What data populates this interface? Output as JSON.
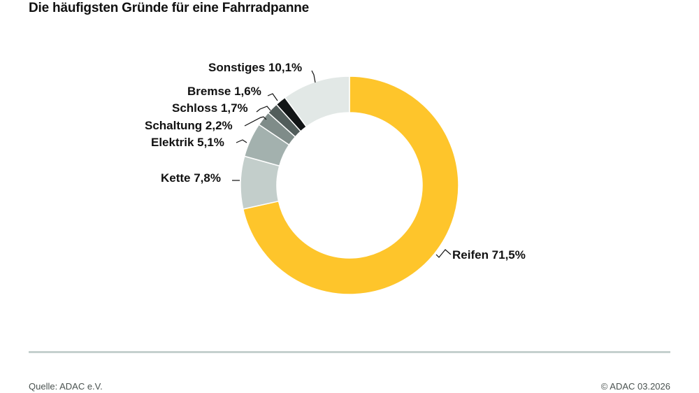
{
  "title": "Die häufigsten Gründe für eine Fahrradpanne",
  "footer": {
    "source": "Quelle: ADAC e.V.",
    "copyright": "© ADAC  03.2026"
  },
  "labels": {
    "reifen": "Reifen 71,5%",
    "kette": "Kette 7,8%",
    "elektrik": "Elektrik 5,1%",
    "schaltung": "Schaltung 2,2%",
    "schloss": "Schloss 1,7%",
    "bremse": "Bremse 1,6%",
    "sonstiges": "Sonstiges 10,1%"
  },
  "chart_data": {
    "type": "pie",
    "variant": "donut",
    "title": "Die häufigsten Gründe für eine Fahrradpanne",
    "categories": [
      "Reifen",
      "Kette",
      "Elektrik",
      "Schaltung",
      "Schloss",
      "Bremse",
      "Sonstiges"
    ],
    "values": [
      71.5,
      7.8,
      5.1,
      2.2,
      1.7,
      1.6,
      10.1
    ],
    "unit": "%",
    "colors": [
      "#FEC52B",
      "#C3CECB",
      "#A3B1AE",
      "#7F8C89",
      "#525D5B",
      "#121516",
      "#E2E8E6"
    ],
    "start_angle": "12 o'clock",
    "direction": "clockwise",
    "source": "ADAC e.V."
  }
}
